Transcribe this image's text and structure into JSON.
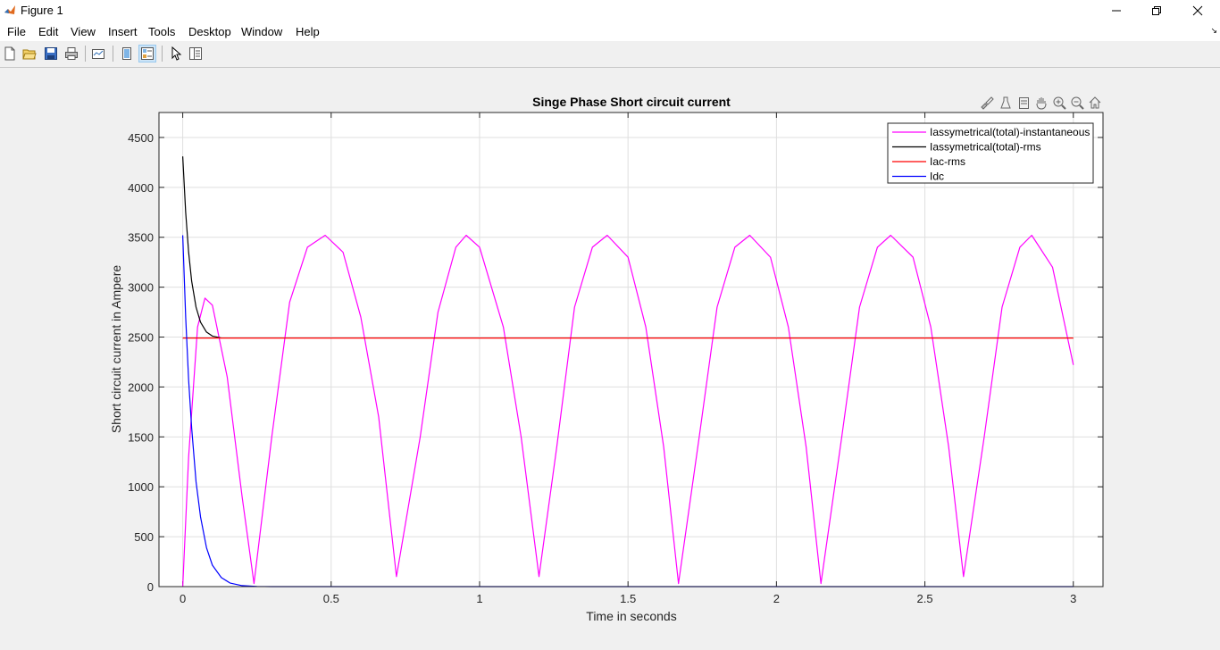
{
  "window": {
    "title": "Figure 1",
    "minimize_glyph": "—",
    "maximize_glyph": "❐",
    "close_glyph": "✕"
  },
  "menu": {
    "items": [
      "File",
      "Edit",
      "View",
      "Insert",
      "Tools",
      "Desktop",
      "Window",
      "Help"
    ]
  },
  "toolbar": {
    "buttons": [
      "new-figure-icon",
      "open-file-icon",
      "save-icon",
      "print-icon",
      "link-plot-icon",
      "hide-plot-tools-icon",
      "show-plot-tools-icon",
      "edit-plot-arrow-icon",
      "open-property-inspector-icon"
    ]
  },
  "axes_toolbar": {
    "buttons": [
      "brush-icon",
      "data-tips-icon",
      "rotate-icon",
      "pan-hand-icon",
      "zoom-in-icon",
      "zoom-out-icon",
      "restore-view-home-icon"
    ]
  },
  "chart_data": {
    "type": "line",
    "title": "Singe Phase Short circuit current",
    "xlabel": "Time in seconds",
    "ylabel": "Short circuit current in Ampere",
    "xlim": [
      -0.08,
      3.1
    ],
    "ylim": [
      0,
      4750
    ],
    "xticks": [
      0,
      0.5,
      1,
      1.5,
      2,
      2.5,
      3
    ],
    "xticklabels": [
      "0",
      "0.5",
      "1",
      "1.5",
      "2",
      "2.5",
      "3"
    ],
    "yticks": [
      0,
      500,
      1000,
      1500,
      2000,
      2500,
      3000,
      3500,
      4000,
      4500
    ],
    "yticklabels": [
      "0",
      "500",
      "1000",
      "1500",
      "2000",
      "2500",
      "3000",
      "3500",
      "4000",
      "4500"
    ],
    "grid": true,
    "legend_position": "top-right",
    "series": [
      {
        "name": "Iassymetrical(total)-instantaneous",
        "color": "#ff00ff",
        "points": [
          [
            0,
            0
          ],
          [
            0.02,
            1300
          ],
          [
            0.05,
            2600
          ],
          [
            0.075,
            2890
          ],
          [
            0.1,
            2820
          ],
          [
            0.15,
            2100
          ],
          [
            0.2,
            900
          ],
          [
            0.24,
            30
          ],
          [
            0.3,
            1500
          ],
          [
            0.36,
            2850
          ],
          [
            0.42,
            3400
          ],
          [
            0.48,
            3520
          ],
          [
            0.54,
            3350
          ],
          [
            0.6,
            2700
          ],
          [
            0.66,
            1700
          ],
          [
            0.72,
            100
          ],
          [
            0.8,
            1500
          ],
          [
            0.86,
            2750
          ],
          [
            0.92,
            3400
          ],
          [
            0.955,
            3520
          ],
          [
            1.0,
            3400
          ],
          [
            1.08,
            2600
          ],
          [
            1.14,
            1500
          ],
          [
            1.2,
            100
          ],
          [
            1.26,
            1400
          ],
          [
            1.32,
            2800
          ],
          [
            1.38,
            3400
          ],
          [
            1.43,
            3520
          ],
          [
            1.5,
            3300
          ],
          [
            1.56,
            2600
          ],
          [
            1.62,
            1400
          ],
          [
            1.67,
            30
          ],
          [
            1.74,
            1500
          ],
          [
            1.8,
            2800
          ],
          [
            1.86,
            3400
          ],
          [
            1.91,
            3520
          ],
          [
            1.98,
            3300
          ],
          [
            2.04,
            2600
          ],
          [
            2.1,
            1400
          ],
          [
            2.15,
            30
          ],
          [
            2.22,
            1500
          ],
          [
            2.28,
            2800
          ],
          [
            2.34,
            3400
          ],
          [
            2.385,
            3520
          ],
          [
            2.46,
            3300
          ],
          [
            2.52,
            2600
          ],
          [
            2.58,
            1400
          ],
          [
            2.63,
            100
          ],
          [
            2.7,
            1500
          ],
          [
            2.76,
            2800
          ],
          [
            2.82,
            3400
          ],
          [
            2.86,
            3520
          ],
          [
            2.93,
            3200
          ],
          [
            3.0,
            2220
          ]
        ]
      },
      {
        "name": "Iassymetrical(total)-rms",
        "color": "#000000",
        "points": [
          [
            0,
            4310
          ],
          [
            0.01,
            3750
          ],
          [
            0.02,
            3350
          ],
          [
            0.03,
            3060
          ],
          [
            0.045,
            2800
          ],
          [
            0.06,
            2650
          ],
          [
            0.08,
            2550
          ],
          [
            0.1,
            2510
          ],
          [
            0.13,
            2490
          ]
        ]
      },
      {
        "name": "Iac-rms",
        "color": "#ff0000",
        "points": [
          [
            0,
            2490
          ],
          [
            3,
            2490
          ]
        ]
      },
      {
        "name": "Idc",
        "color": "#0000ff",
        "points": [
          [
            0,
            3520
          ],
          [
            0.01,
            2700
          ],
          [
            0.02,
            2070
          ],
          [
            0.03,
            1590
          ],
          [
            0.045,
            1050
          ],
          [
            0.06,
            700
          ],
          [
            0.08,
            390
          ],
          [
            0.1,
            215
          ],
          [
            0.13,
            90
          ],
          [
            0.16,
            35
          ],
          [
            0.2,
            10
          ],
          [
            0.25,
            2
          ],
          [
            0.3,
            0
          ],
          [
            3,
            0
          ]
        ]
      }
    ]
  }
}
